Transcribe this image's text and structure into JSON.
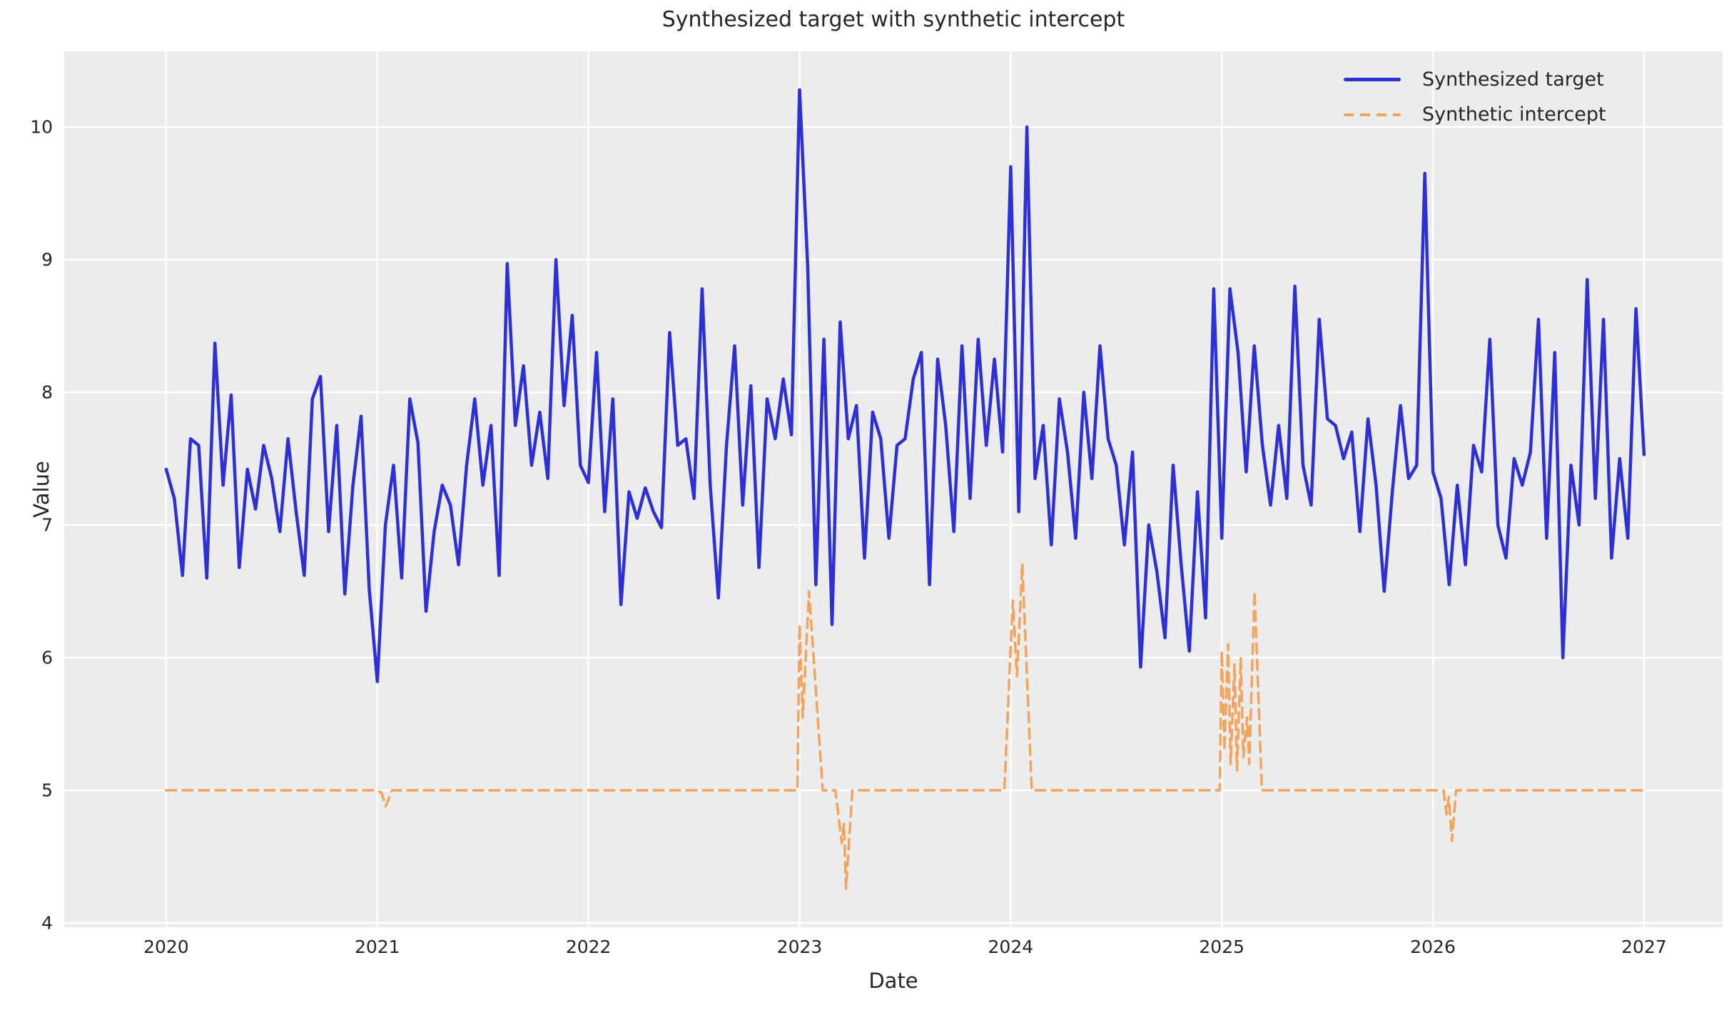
{
  "title": "Synthesized target with synthetic intercept",
  "colors": {
    "figure_bg": "#ffffff",
    "plot_bg": "#ececec",
    "grid": "#ffffff",
    "text": "#262626",
    "target_line": "#2c30d6",
    "intercept_line": "#f2a45e"
  },
  "chart_data": {
    "type": "line",
    "title": "Synthesized target with synthetic intercept",
    "xlabel": "Date",
    "ylabel": "Value",
    "xlim": [
      2019.517,
      2027.372
    ],
    "ylim": [
      3.968,
      10.57
    ],
    "x_ticks": [
      2020,
      2021,
      2022,
      2023,
      2024,
      2025,
      2026,
      2027
    ],
    "y_ticks": [
      4,
      5,
      6,
      7,
      8,
      9,
      10
    ],
    "grid": true,
    "legend_position": "upper right",
    "series": [
      {
        "name": "Synthesized target",
        "color": "#2c30d6",
        "style": "solid",
        "line_width": 4.5,
        "x_start": 2020.0,
        "x_step": 0.038462,
        "values": [
          7.42,
          7.2,
          6.62,
          7.65,
          7.6,
          6.6,
          8.37,
          7.3,
          7.98,
          6.68,
          7.42,
          7.12,
          7.6,
          7.35,
          6.95,
          7.65,
          7.1,
          6.62,
          7.95,
          8.12,
          6.95,
          7.75,
          6.48,
          7.3,
          7.82,
          6.52,
          5.82,
          7.0,
          7.45,
          6.6,
          7.95,
          7.62,
          6.35,
          6.95,
          7.3,
          7.15,
          6.7,
          7.45,
          7.95,
          7.3,
          7.75,
          6.62,
          8.97,
          7.75,
          8.2,
          7.45,
          7.85,
          7.35,
          9.0,
          7.9,
          8.58,
          7.45,
          7.32,
          8.3,
          7.1,
          7.95,
          6.4,
          7.25,
          7.05,
          7.28,
          7.1,
          6.98,
          8.45,
          7.6,
          7.65,
          7.2,
          8.78,
          7.3,
          6.45,
          7.6,
          8.35,
          7.15,
          8.05,
          6.68,
          7.95,
          7.65,
          8.1,
          7.68,
          10.28,
          8.95,
          6.55,
          8.4,
          6.25,
          8.53,
          7.65,
          7.9,
          6.75,
          7.85,
          7.65,
          6.9,
          7.6,
          7.65,
          8.1,
          8.3,
          6.55,
          8.25,
          7.75,
          6.95,
          8.35,
          7.2,
          8.4,
          7.6,
          8.25,
          7.55,
          9.7,
          7.1,
          10.0,
          7.35,
          7.75,
          6.85,
          7.95,
          7.55,
          6.9,
          8.0,
          7.35,
          8.35,
          7.65,
          7.45,
          6.85,
          7.55,
          5.93,
          7.0,
          6.65,
          6.15,
          7.45,
          6.7,
          6.05,
          7.25,
          6.3,
          8.78,
          6.9,
          8.78,
          8.3,
          7.4,
          8.35,
          7.6,
          7.15,
          7.75,
          7.2,
          8.8,
          7.45,
          7.15,
          8.55,
          7.8,
          7.75,
          7.5,
          7.7,
          6.95,
          7.8,
          7.3,
          6.5,
          7.25,
          7.9,
          7.35,
          7.45,
          9.65,
          7.4,
          7.2,
          6.55,
          7.3,
          6.7,
          7.6,
          7.4,
          8.4,
          7.0,
          6.75,
          7.5,
          7.3,
          7.55,
          8.55,
          6.9,
          8.3,
          6.0,
          7.45,
          7.0,
          8.85,
          7.2,
          8.55,
          6.75,
          7.5,
          6.9,
          8.63,
          7.53
        ]
      },
      {
        "name": "Synthetic intercept",
        "color": "#f2a45e",
        "style": "dashed",
        "line_width": 3.5,
        "points": [
          [
            2020.0,
            5
          ],
          [
            2021.0,
            5
          ],
          [
            2021.02,
            4.98
          ],
          [
            2021.04,
            4.88
          ],
          [
            2021.07,
            5
          ],
          [
            2022.95,
            5
          ],
          [
            2022.99,
            5.0
          ],
          [
            2023.0,
            6.25
          ],
          [
            2023.015,
            5.55
          ],
          [
            2023.045,
            6.5
          ],
          [
            2023.11,
            5
          ],
          [
            2023.17,
            5
          ],
          [
            2023.2,
            4.6
          ],
          [
            2023.21,
            4.75
          ],
          [
            2023.22,
            4.26
          ],
          [
            2023.25,
            5
          ],
          [
            2023.97,
            5
          ],
          [
            2024.01,
            6.43
          ],
          [
            2024.03,
            5.86
          ],
          [
            2024.055,
            6.71
          ],
          [
            2024.1,
            5
          ],
          [
            2024.99,
            5
          ],
          [
            2025.0,
            6.05
          ],
          [
            2025.012,
            5.3
          ],
          [
            2025.03,
            6.1
          ],
          [
            2025.042,
            5.2
          ],
          [
            2025.06,
            5.95
          ],
          [
            2025.072,
            5.15
          ],
          [
            2025.09,
            6.0
          ],
          [
            2025.102,
            5.25
          ],
          [
            2025.12,
            5.55
          ],
          [
            2025.13,
            5.2
          ],
          [
            2025.155,
            6.5
          ],
          [
            2025.19,
            5
          ],
          [
            2026.05,
            5
          ],
          [
            2026.065,
            4.82
          ],
          [
            2026.075,
            4.95
          ],
          [
            2026.09,
            4.62
          ],
          [
            2026.11,
            5
          ],
          [
            2027.0,
            5
          ]
        ]
      }
    ]
  }
}
